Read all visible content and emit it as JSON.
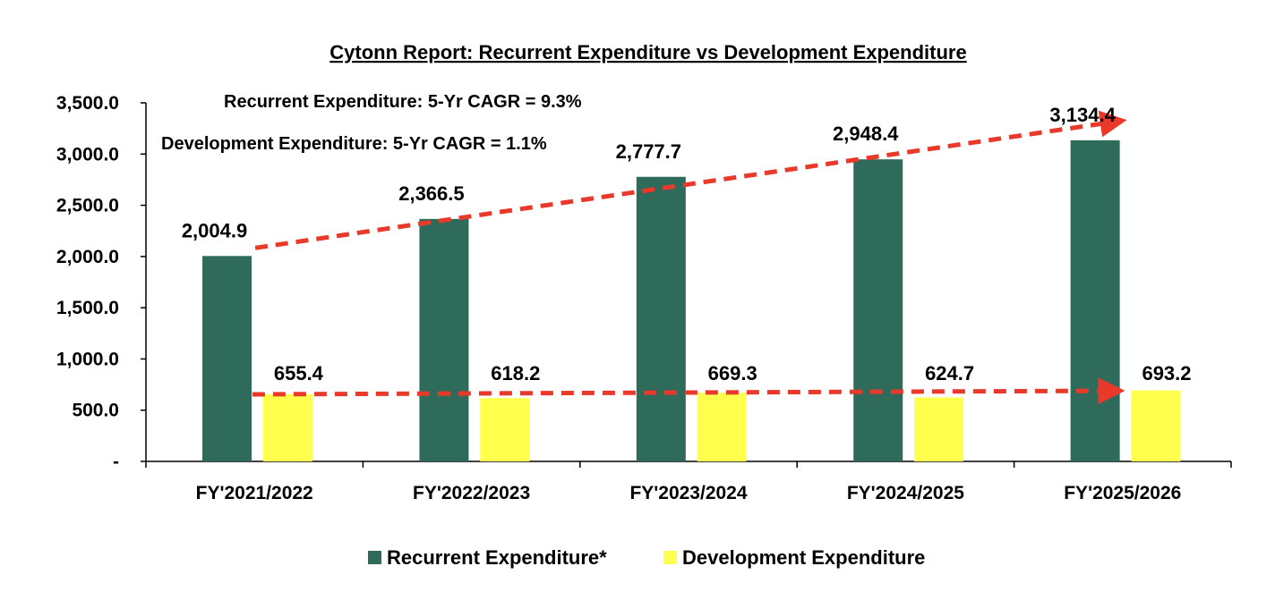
{
  "chart_data": {
    "type": "bar",
    "title": "Cytonn Report: Recurrent Expenditure vs Development Expenditure",
    "categories": [
      "FY'2021/2022",
      "FY'2022/2023",
      "FY'2023/2024",
      "FY'2024/2025",
      "FY'2025/2026"
    ],
    "series": [
      {
        "name": "Recurrent Expenditure*",
        "color": "#2E6B5B",
        "values": [
          2004.9,
          2366.5,
          2777.7,
          2948.4,
          3134.4
        ],
        "labels": [
          "2,004.9",
          "2,366.5",
          "2,777.7",
          "2,948.4",
          "3,134.4"
        ]
      },
      {
        "name": "Development Expenditure",
        "color": "#FFFF4D",
        "values": [
          655.4,
          618.2,
          669.3,
          624.7,
          693.2
        ],
        "labels": [
          "655.4",
          "618.2",
          "669.3",
          "624.7",
          "693.2"
        ]
      }
    ],
    "ylim": [
      0,
      3500
    ],
    "yticks": [
      0,
      500,
      1000,
      1500,
      2000,
      2500,
      3000,
      3500
    ],
    "ytick_labels": [
      "-",
      "500.0",
      "1,000.0",
      "1,500.0",
      "2,000.0",
      "2,500.0",
      "3,000.0",
      "3,500.0"
    ],
    "xlabel": "",
    "ylabel": "",
    "grid": false,
    "legend_position": "bottom",
    "annotations": [
      "Recurrent Expenditure: 5-Yr CAGR = 9.3%",
      "Development Expenditure: 5-Yr CAGR = 1.1%"
    ],
    "trend_arrows": [
      {
        "series": "Recurrent Expenditure*",
        "color": "#E8392B",
        "style": "dashed"
      },
      {
        "series": "Development Expenditure",
        "color": "#E8392B",
        "style": "dashed"
      }
    ]
  }
}
